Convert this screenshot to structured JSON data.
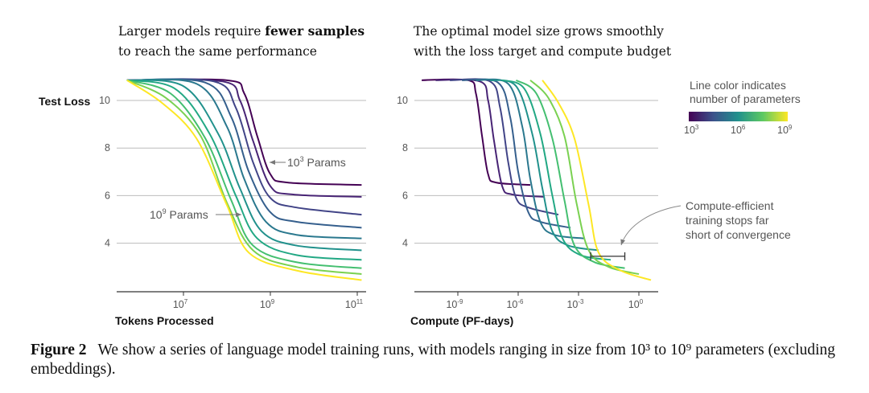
{
  "titles": {
    "left": {
      "line1_pre": "Larger models require ",
      "line1_bold": "fewer samples",
      "line2": "to reach the same performance"
    },
    "right": {
      "line1": "The optimal model size grows smoothly",
      "line2": "with the loss target and compute budget"
    }
  },
  "colorbar": {
    "label_line1": "Line color indicates",
    "label_line2": "number of parameters",
    "ticks": [
      {
        "base": "10",
        "exp": "3"
      },
      {
        "base": "10",
        "exp": "6"
      },
      {
        "base": "10",
        "exp": "9"
      }
    ],
    "colors": [
      "#440154",
      "#3b528b",
      "#21918c",
      "#5ec962",
      "#fde725"
    ]
  },
  "chart_data": [
    {
      "type": "line",
      "title": "Larger models require fewer samples to reach the same performance",
      "xlabel": "Tokens Processed",
      "ylabel": "Test Loss",
      "xscale": "log",
      "xlim": [
        300000.0,
        160000000000.0
      ],
      "ylim": [
        2.0,
        11.0
      ],
      "grid": "horizontal",
      "xticks": [
        {
          "base": "10",
          "exp": "7",
          "value": 10000000.0
        },
        {
          "base": "10",
          "exp": "9",
          "value": 1000000000.0
        },
        {
          "base": "10",
          "exp": "11",
          "value": 100000000000.0
        }
      ],
      "yticks": [
        10,
        8,
        6,
        4
      ],
      "annotations": [
        {
          "text_base": "10",
          "text_exp": "3",
          "text_rest": " Params"
        },
        {
          "text_base": "10",
          "text_exp": "9",
          "text_rest": " Params"
        }
      ],
      "series": [
        {
          "params": 1000.0,
          "color": "#440154",
          "points": [
            [
              500000.0,
              10.85
            ],
            [
              100000000.0,
              10.85
            ],
            [
              250000000.0,
              10.3
            ],
            [
              500000000.0,
              8.5
            ],
            [
              1000000000.0,
              6.9
            ],
            [
              2500000000.0,
              6.55
            ],
            [
              126000000000.0,
              6.45
            ]
          ]
        },
        {
          "params": 4600.0,
          "color": "#482475",
          "points": [
            [
              500000.0,
              10.85
            ],
            [
              79000000.0,
              10.8
            ],
            [
              200000000.0,
              10.0
            ],
            [
              400000000.0,
              8.3
            ],
            [
              1000000000.0,
              6.4
            ],
            [
              3200000000.0,
              6.05
            ],
            [
              126000000000.0,
              5.95
            ]
          ]
        },
        {
          "params": 22000.0,
          "color": "#414487",
          "points": [
            [
              500000.0,
              10.85
            ],
            [
              50000000.0,
              10.8
            ],
            [
              160000000.0,
              9.7
            ],
            [
              400000000.0,
              7.4
            ],
            [
              1000000000.0,
              5.9
            ],
            [
              4000000000.0,
              5.5
            ],
            [
              126000000000.0,
              5.2
            ]
          ]
        },
        {
          "params": 100000.0,
          "color": "#355f8d",
          "points": [
            [
              500000.0,
              10.85
            ],
            [
              32000000.0,
              10.75
            ],
            [
              126000000.0,
              9.3
            ],
            [
              320000000.0,
              7.0
            ],
            [
              1000000000.0,
              5.3
            ],
            [
              4000000000.0,
              4.9
            ],
            [
              126000000000.0,
              4.65
            ]
          ]
        },
        {
          "params": 460000.0,
          "color": "#2a788e",
          "points": [
            [
              500000.0,
              10.85
            ],
            [
              20000000.0,
              10.7
            ],
            [
              100000000.0,
              8.9
            ],
            [
              250000000.0,
              6.7
            ],
            [
              790000000.0,
              4.9
            ],
            [
              4000000000.0,
              4.35
            ],
            [
              126000000000.0,
              4.2
            ]
          ]
        },
        {
          "params": 2200000.0,
          "color": "#21918c",
          "points": [
            [
              500000.0,
              10.85
            ],
            [
              10000000.0,
              10.6
            ],
            [
              63000000.0,
              8.6
            ],
            [
              200000000.0,
              6.3
            ],
            [
              630000000.0,
              4.5
            ],
            [
              4000000000.0,
              3.9
            ],
            [
              126000000000.0,
              3.7
            ]
          ]
        },
        {
          "params": 10000000.0,
          "color": "#22a884",
          "points": [
            [
              500000.0,
              10.85
            ],
            [
              6300000.0,
              10.5
            ],
            [
              40000000.0,
              8.6
            ],
            [
              160000000.0,
              6.0
            ],
            [
              500000000.0,
              4.2
            ],
            [
              4000000000.0,
              3.5
            ],
            [
              126000000000.0,
              3.3
            ]
          ]
        },
        {
          "params": 46000000.0,
          "color": "#44bf70",
          "points": [
            [
              500000.0,
              10.85
            ],
            [
              5000000.0,
              10.3
            ],
            [
              32000000.0,
              8.4
            ],
            [
              126000000.0,
              5.8
            ],
            [
              400000000.0,
              3.9
            ],
            [
              4000000000.0,
              3.2
            ],
            [
              126000000000.0,
              2.95
            ]
          ]
        },
        {
          "params": 220000000.0,
          "color": "#7ad151",
          "points": [
            [
              500000.0,
              10.85
            ],
            [
              4000000.0,
              10.1
            ],
            [
              25000000.0,
              8.5
            ],
            [
              100000000.0,
              5.7
            ],
            [
              400000000.0,
              3.7
            ],
            [
              4000000000.0,
              3.0
            ],
            [
              126000000000.0,
              2.7
            ]
          ]
        },
        {
          "params": 1000000000.0,
          "color": "#fde725",
          "points": [
            [
              500000.0,
              10.85
            ],
            [
              3200000.0,
              9.9
            ],
            [
              20000000.0,
              8.4
            ],
            [
              100000000.0,
              5.6
            ],
            [
              320000000.0,
              3.6
            ],
            [
              4000000000.0,
              2.85
            ],
            [
              126000000000.0,
              2.45
            ]
          ]
        }
      ]
    },
    {
      "type": "line",
      "title": "The optimal model size grows smoothly with the loss target and compute budget",
      "xlabel": "Compute (PF-days)",
      "ylabel": "",
      "xscale": "log",
      "xlim": [
        1e-11,
        10.0
      ],
      "ylim": [
        2.0,
        11.0
      ],
      "grid": "horizontal",
      "xticks": [
        {
          "base": "10",
          "exp": "-9",
          "value": 1e-09
        },
        {
          "base": "10",
          "exp": "-6",
          "value": 1e-06
        },
        {
          "base": "10",
          "exp": "-3",
          "value": 0.001
        },
        {
          "base": "10",
          "exp": "0",
          "value": 1
        }
      ],
      "yticks": [
        10,
        8,
        6,
        4
      ],
      "annotation": {
        "line1": "Compute-efficient",
        "line2": "training stops far",
        "line3": "short of convergence"
      },
      "efficient_range": {
        "x": [
          0.004,
          0.2
        ],
        "loss": 3.45
      },
      "series": [
        {
          "params": 1000.0,
          "color": "#440154",
          "points": [
            [
              1.6e-11,
              10.85
            ],
            [
              3.2e-09,
              10.85
            ],
            [
              7.9e-09,
              10.3
            ],
            [
              1.6e-08,
              8.5
            ],
            [
              3.2e-08,
              6.9
            ],
            [
              7.9e-08,
              6.55
            ],
            [
              4e-06,
              6.45
            ]
          ]
        },
        {
          "params": 4600.0,
          "color": "#482475",
          "points": [
            [
              7.9e-11,
              10.85
            ],
            [
              1.26e-08,
              10.8
            ],
            [
              3.2e-08,
              10.0
            ],
            [
              6.3e-08,
              8.3
            ],
            [
              1.6e-07,
              6.4
            ],
            [
              5e-07,
              6.05
            ],
            [
              2e-05,
              5.95
            ]
          ]
        },
        {
          "params": 22000.0,
          "color": "#414487",
          "points": [
            [
              4e-10,
              10.85
            ],
            [
              4e-08,
              10.8
            ],
            [
              1.26e-07,
              9.7
            ],
            [
              3.2e-07,
              7.4
            ],
            [
              7.9e-07,
              5.9
            ],
            [
              3.2e-06,
              5.5
            ],
            [
              0.0001,
              5.2
            ]
          ]
        },
        {
          "params": 100000.0,
          "color": "#355f8d",
          "points": [
            [
              1.6e-09,
              10.85
            ],
            [
              1e-07,
              10.75
            ],
            [
              4e-07,
              9.3
            ],
            [
              1e-06,
              7.0
            ],
            [
              3.2e-06,
              5.3
            ],
            [
              1.26e-05,
              4.9
            ],
            [
              0.0004,
              4.65
            ]
          ]
        },
        {
          "params": 460000.0,
          "color": "#2a788e",
          "points": [
            [
              7.9e-09,
              10.85
            ],
            [
              3.2e-07,
              10.7
            ],
            [
              1.6e-06,
              8.9
            ],
            [
              4e-06,
              6.7
            ],
            [
              1.26e-05,
              4.9
            ],
            [
              6.3e-05,
              4.35
            ],
            [
              0.002,
              4.2
            ]
          ]
        },
        {
          "params": 2200000.0,
          "color": "#21918c",
          "points": [
            [
              4e-08,
              10.85
            ],
            [
              7.9e-07,
              10.6
            ],
            [
              5e-06,
              8.6
            ],
            [
              1.6e-05,
              6.3
            ],
            [
              5e-05,
              4.5
            ],
            [
              0.00032,
              3.9
            ],
            [
              0.01,
              3.7
            ]
          ]
        },
        {
          "params": 10000000.0,
          "color": "#22a884",
          "points": [
            [
              1.6e-07,
              10.85
            ],
            [
              2e-06,
              10.5
            ],
            [
              1.26e-05,
              8.6
            ],
            [
              5e-05,
              6.0
            ],
            [
              0.00016,
              4.2
            ],
            [
              0.00126,
              3.5
            ],
            [
              0.04,
              3.3
            ]
          ]
        },
        {
          "params": 46000000.0,
          "color": "#44bf70",
          "points": [
            [
              7.9e-07,
              10.85
            ],
            [
              7.9e-06,
              10.3
            ],
            [
              5e-05,
              8.4
            ],
            [
              0.0002,
              5.8
            ],
            [
              0.00063,
              3.9
            ],
            [
              0.0063,
              3.2
            ],
            [
              0.2,
              2.95
            ]
          ]
        },
        {
          "params": 220000000.0,
          "color": "#7ad151",
          "points": [
            [
              4e-06,
              10.85
            ],
            [
              3.2e-05,
              10.1
            ],
            [
              0.0002,
              8.5
            ],
            [
              0.00079,
              5.7
            ],
            [
              0.0032,
              3.7
            ],
            [
              0.032,
              3.0
            ],
            [
              1,
              2.7
            ]
          ]
        },
        {
          "params": 1000000000.0,
          "color": "#fde725",
          "points": [
            [
              1.6e-05,
              10.85
            ],
            [
              0.0001,
              9.9
            ],
            [
              0.00063,
              8.4
            ],
            [
              0.0032,
              5.6
            ],
            [
              0.01,
              3.6
            ],
            [
              0.126,
              2.85
            ],
            [
              4,
              2.45
            ]
          ]
        }
      ]
    }
  ],
  "caption": {
    "label": "Figure 2",
    "text": "We show a series of language model training runs, with models ranging in size from 10³ to 10⁹ parameters (excluding embeddings)."
  }
}
